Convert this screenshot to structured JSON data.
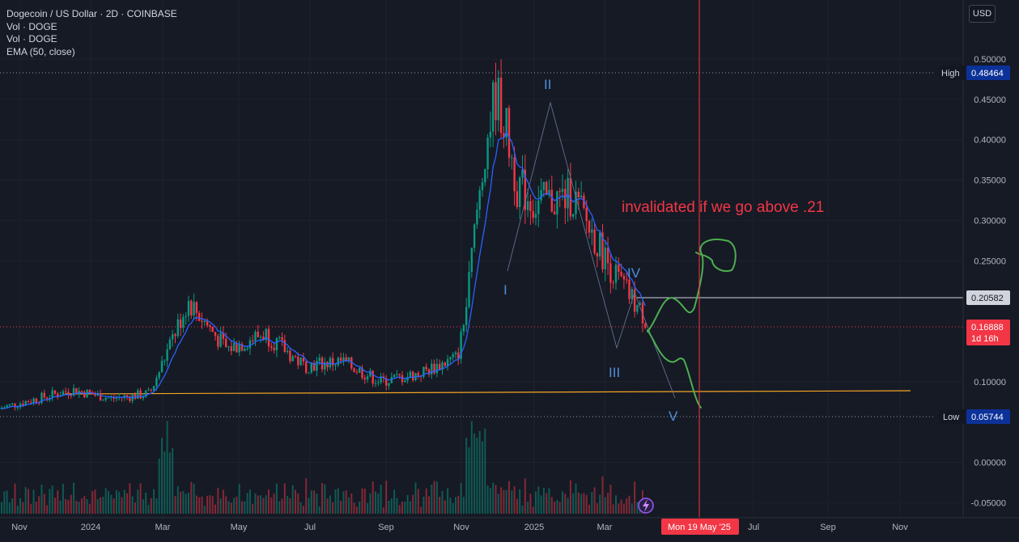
{
  "legend": {
    "symbol": "Dogecoin / US Dollar · 2D · COINBASE",
    "vol1": "Vol · DOGE",
    "vol2": "Vol · DOGE",
    "ema": "EMA (50, close)"
  },
  "currency_button": "USD",
  "price_axis": {
    "ticks": [
      "0.50000",
      "0.45000",
      "0.40000",
      "0.35000",
      "0.30000",
      "0.25000",
      "0.10000",
      "0.00000",
      "-0.05000"
    ],
    "high_label": "High",
    "high_value": "0.48464",
    "low_label": "Low",
    "low_value": "0.05744",
    "level_value": "0.20582",
    "last_price": "0.16888",
    "countdown": "1d 16h"
  },
  "time_axis": {
    "labels": [
      "Nov",
      "2024",
      "Mar",
      "May",
      "Jul",
      "Sep",
      "Nov",
      "2025",
      "Mar",
      "Jul",
      "Sep",
      "Nov"
    ],
    "crosshair_label": "Mon 19 May '25"
  },
  "annotation": {
    "text": "invalidated if we go above .21",
    "color": "#f23645"
  },
  "wave_labels": [
    "I",
    "II",
    "III",
    "IV",
    "V"
  ],
  "colors": {
    "background": "#161a25",
    "up": "#089981",
    "down": "#f23645",
    "ema": "#2962ff",
    "support_line": "#f5a623",
    "projection": "#4caf50",
    "wave_label": "#4f8fd8",
    "crosshair": "#f23645"
  },
  "chart_data": {
    "type": "candlestick",
    "title": "Dogecoin / US Dollar · 2D · COINBASE",
    "ylim": [
      -0.06,
      0.53
    ],
    "ema_period": 50,
    "high": 0.48464,
    "low": 0.05744,
    "last": 0.16888,
    "resistance_level": 0.20582,
    "support_level": 0.085,
    "closes_monthly": [
      {
        "x": "2023-10",
        "close": 0.066
      },
      {
        "x": "2023-11",
        "close": 0.078
      },
      {
        "x": "2023-12",
        "close": 0.09
      },
      {
        "x": "2024-01",
        "close": 0.079
      },
      {
        "x": "2024-02",
        "close": 0.085
      },
      {
        "x": "2024-03",
        "close": 0.2
      },
      {
        "x": "2024-04",
        "close": 0.14
      },
      {
        "x": "2024-05",
        "close": 0.16
      },
      {
        "x": "2024-06",
        "close": 0.12
      },
      {
        "x": "2024-07",
        "close": 0.125
      },
      {
        "x": "2024-08",
        "close": 0.1
      },
      {
        "x": "2024-09",
        "close": 0.11
      },
      {
        "x": "2024-10",
        "close": 0.13
      },
      {
        "x": "2024-11",
        "close": 0.38
      },
      {
        "x": "2024-12",
        "close": 0.32
      },
      {
        "x": "2025-01",
        "close": 0.33
      },
      {
        "x": "2025-02",
        "close": 0.24
      },
      {
        "x": "2025-03",
        "close": 0.17
      },
      {
        "x": "2025-04",
        "close": 0.169
      }
    ],
    "wave_points": [
      {
        "label": "I",
        "x": "2024-11",
        "y": 0.24
      },
      {
        "label": "II",
        "x": "2024-12",
        "y": 0.45
      },
      {
        "label": "III",
        "x": "2025-03",
        "y": 0.14
      },
      {
        "label": "IV",
        "x": "2025-04",
        "y": 0.21
      },
      {
        "label": "V",
        "x": "2025-05",
        "y": 0.08
      }
    ]
  }
}
